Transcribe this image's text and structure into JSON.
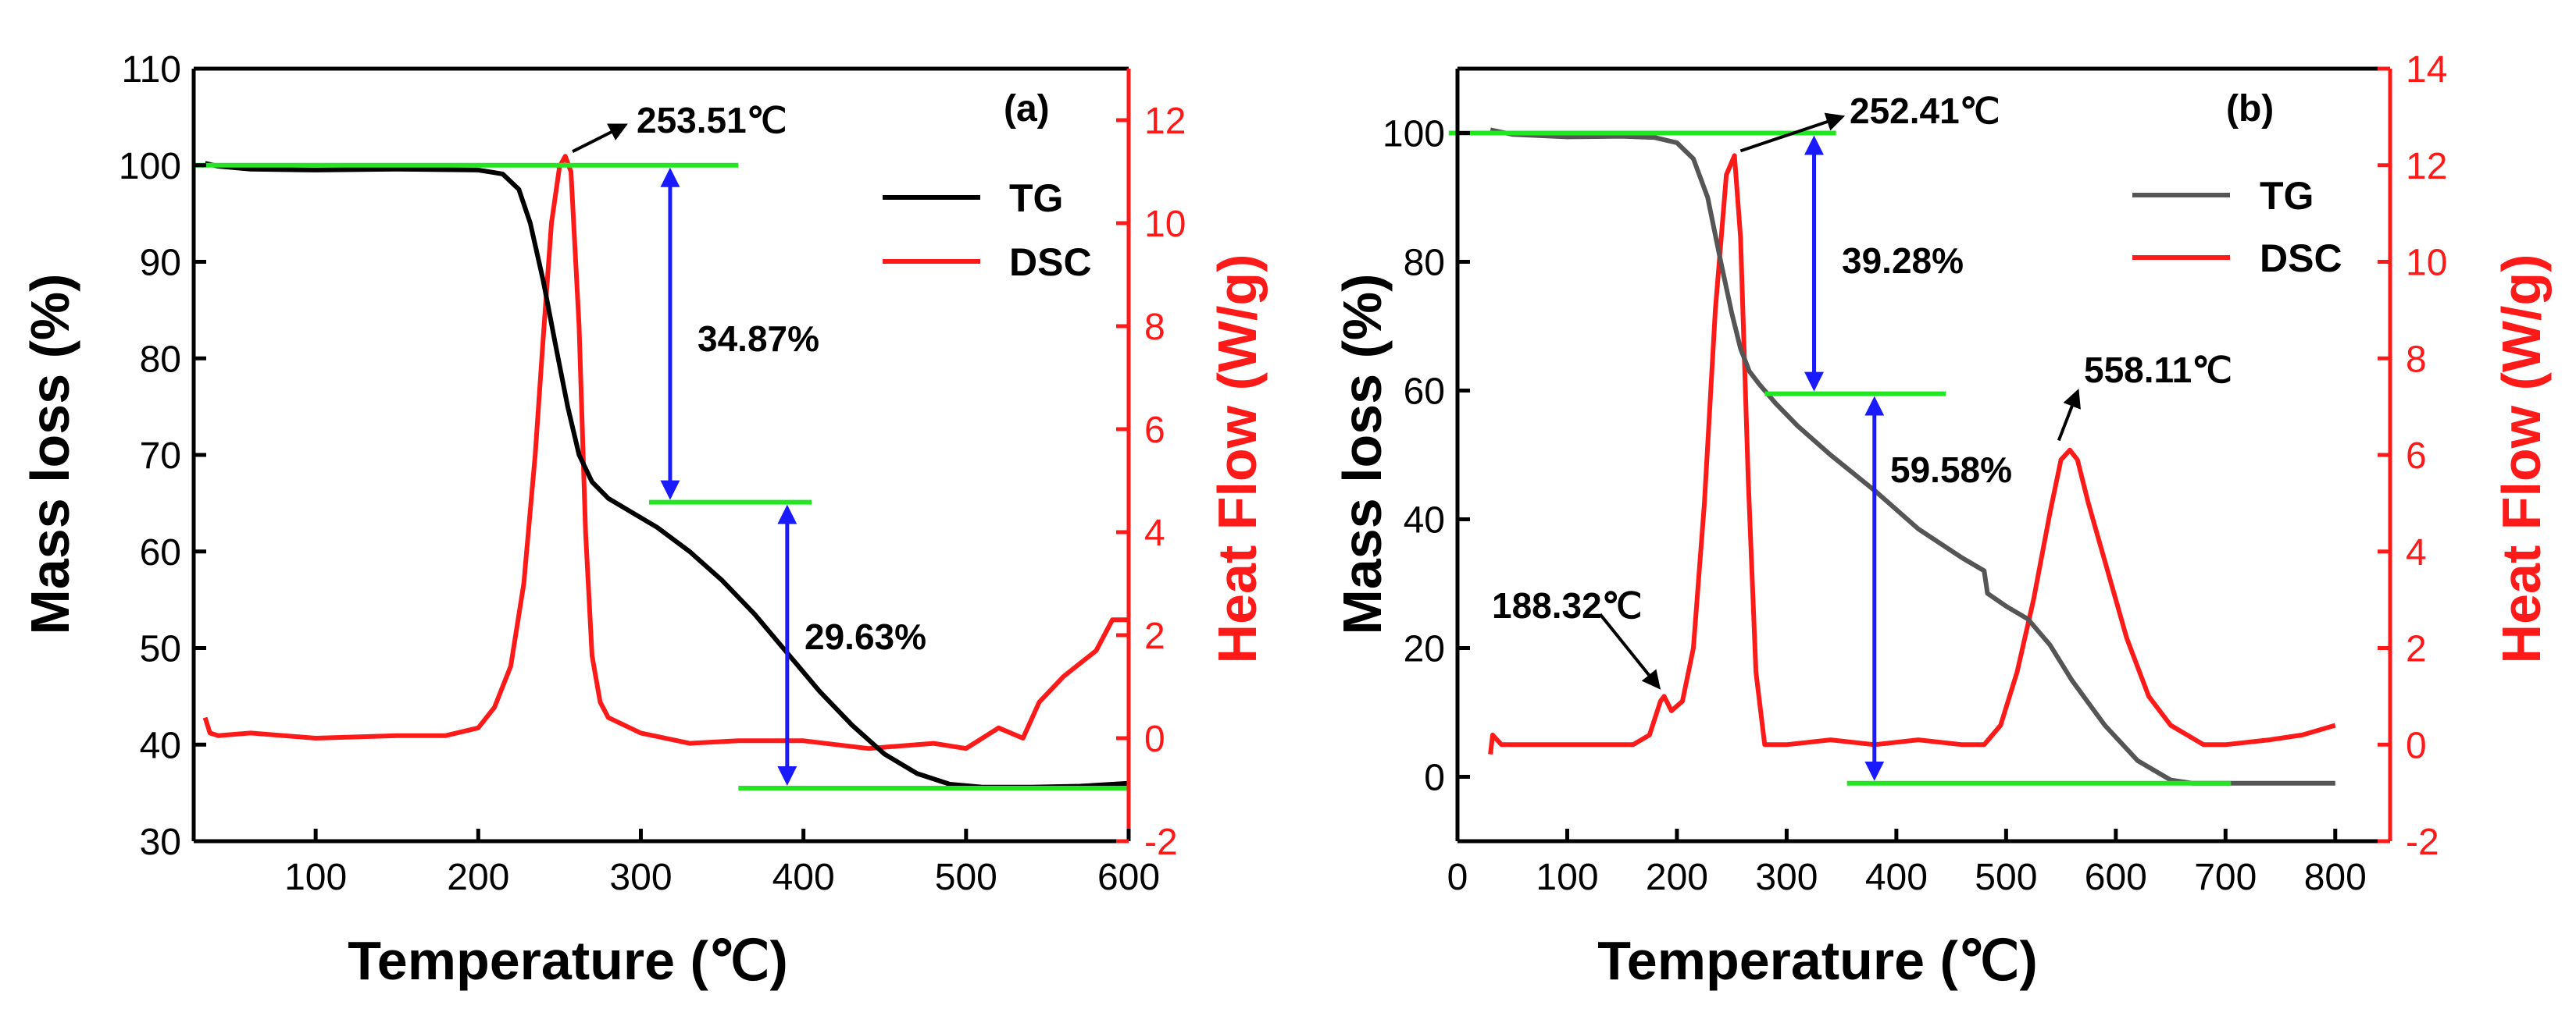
{
  "chart_data": [
    {
      "panel": "(a)",
      "type": "line",
      "xlabel": "Temperature (℃)",
      "ylabel_left": "Mass loss (%)",
      "ylabel_right": "Heat Flow (W/g)",
      "xlim": [
        25,
        600
      ],
      "xticks": [
        100,
        200,
        300,
        400,
        500,
        600
      ],
      "ylim_left": [
        30,
        110
      ],
      "yticks_left": [
        30,
        40,
        50,
        60,
        70,
        80,
        90,
        100,
        110
      ],
      "ylim_right": [
        -2,
        13
      ],
      "yticks_right": [
        -2,
        0,
        2,
        4,
        6,
        8,
        10,
        12
      ],
      "legend": [
        "TG",
        "DSC"
      ],
      "series": [
        {
          "name": "TG",
          "axis": "left",
          "color": "#000000",
          "x": [
            32,
            40,
            60,
            100,
            150,
            200,
            215,
            225,
            232,
            240,
            248,
            255,
            262,
            270,
            280,
            295,
            310,
            330,
            350,
            370,
            390,
            410,
            430,
            450,
            470,
            490,
            510,
            540,
            570,
            600
          ],
          "y": [
            100.2,
            99.9,
            99.6,
            99.5,
            99.6,
            99.5,
            99.1,
            97.5,
            94,
            88,
            81,
            75,
            70,
            67.2,
            65.5,
            64,
            62.5,
            60,
            57,
            53.5,
            49.5,
            45.5,
            42,
            39,
            37,
            35.9,
            35.6,
            35.6,
            35.7,
            36
          ]
        },
        {
          "name": "DSC",
          "axis": "right",
          "color": "#ff1a1a",
          "x": [
            32,
            35,
            40,
            60,
            100,
            150,
            180,
            200,
            210,
            220,
            228,
            235,
            240,
            245,
            250,
            253.51,
            257,
            262,
            266,
            270,
            275,
            280,
            300,
            330,
            360,
            400,
            440,
            480,
            500,
            520,
            535,
            545,
            560,
            580,
            590,
            600
          ],
          "y": [
            0.4,
            0.1,
            0.05,
            0.1,
            0.0,
            0.05,
            0.05,
            0.2,
            0.6,
            1.4,
            3.0,
            5.5,
            7.8,
            10.0,
            11.1,
            11.3,
            11.0,
            8.0,
            4.0,
            1.6,
            0.7,
            0.4,
            0.1,
            -0.1,
            -0.05,
            -0.05,
            -0.2,
            -0.1,
            -0.2,
            0.2,
            0.0,
            0.7,
            1.2,
            1.7,
            2.3,
            2.3
          ]
        }
      ],
      "annotations": [
        {
          "text": "253.51℃",
          "x": 253.51
        },
        {
          "text": "34.87%",
          "from": 100,
          "to": 65.1
        },
        {
          "text": "29.63%",
          "from": 65.1,
          "to": 35.5
        }
      ],
      "reference_levels": [
        100,
        65.1,
        35.5
      ]
    },
    {
      "panel": "(b)",
      "type": "line",
      "xlabel": "Temperature (℃)",
      "ylabel_left": "Mass loss (%)",
      "ylabel_right": "Heat Flow (W/g)",
      "xlim": [
        0,
        850
      ],
      "xticks": [
        0,
        100,
        200,
        300,
        400,
        500,
        600,
        700,
        800
      ],
      "ylim_left": [
        -10,
        110
      ],
      "yticks_left": [
        0,
        20,
        40,
        60,
        80,
        100
      ],
      "ylim_right": [
        -2,
        14
      ],
      "yticks_right": [
        -2,
        0,
        2,
        4,
        6,
        8,
        10,
        12,
        14
      ],
      "legend": [
        "TG",
        "DSC"
      ],
      "series": [
        {
          "name": "TG",
          "axis": "left",
          "color": "#555555",
          "x": [
            30,
            50,
            100,
            150,
            180,
            200,
            215,
            228,
            240,
            250,
            258,
            266,
            275,
            290,
            310,
            340,
            380,
            420,
            460,
            480,
            483,
            500,
            520,
            540,
            560,
            590,
            620,
            650,
            670,
            700,
            750,
            800
          ],
          "y": [
            100.5,
            99.8,
            99.4,
            99.5,
            99.3,
            98.5,
            96,
            90,
            80,
            72,
            66.5,
            63,
            61,
            58,
            54.5,
            50,
            44.5,
            38.5,
            34,
            32,
            28.5,
            26.5,
            24.5,
            20.5,
            15,
            8,
            2.5,
            -0.5,
            -1,
            -1,
            -1,
            -1
          ]
        },
        {
          "name": "DSC",
          "axis": "right",
          "color": "#ff1a1a",
          "x": [
            30,
            32,
            40,
            80,
            120,
            160,
            175,
            185,
            188.32,
            195,
            205,
            215,
            225,
            235,
            245,
            252.41,
            258,
            265,
            272,
            280,
            300,
            340,
            380,
            420,
            460,
            480,
            495,
            510,
            525,
            540,
            550,
            558.11,
            565,
            575,
            590,
            610,
            630,
            650,
            680,
            700,
            740,
            770,
            800
          ],
          "y": [
            -0.2,
            0.2,
            0.0,
            0.0,
            0.0,
            0.0,
            0.2,
            0.9,
            1.0,
            0.7,
            0.9,
            2.0,
            5.0,
            9.0,
            11.8,
            12.2,
            10.5,
            5.5,
            1.5,
            0.0,
            0.0,
            0.1,
            0.0,
            0.1,
            0.0,
            0.0,
            0.4,
            1.5,
            3.0,
            4.8,
            5.9,
            6.1,
            5.9,
            5.0,
            3.8,
            2.2,
            1.0,
            0.4,
            0.0,
            0.0,
            0.1,
            0.2,
            0.4
          ]
        }
      ],
      "annotations": [
        {
          "text": "252.41℃",
          "x": 252.41
        },
        {
          "text": "39.28%",
          "from": 100,
          "to": 59.5
        },
        {
          "text": "59.58%",
          "from": 59.5,
          "to": -1
        },
        {
          "text": "558.11℃",
          "x": 558.11
        },
        {
          "text": "188.32℃",
          "x": 188.32
        }
      ],
      "reference_levels": [
        100,
        59.5,
        -1
      ]
    }
  ]
}
